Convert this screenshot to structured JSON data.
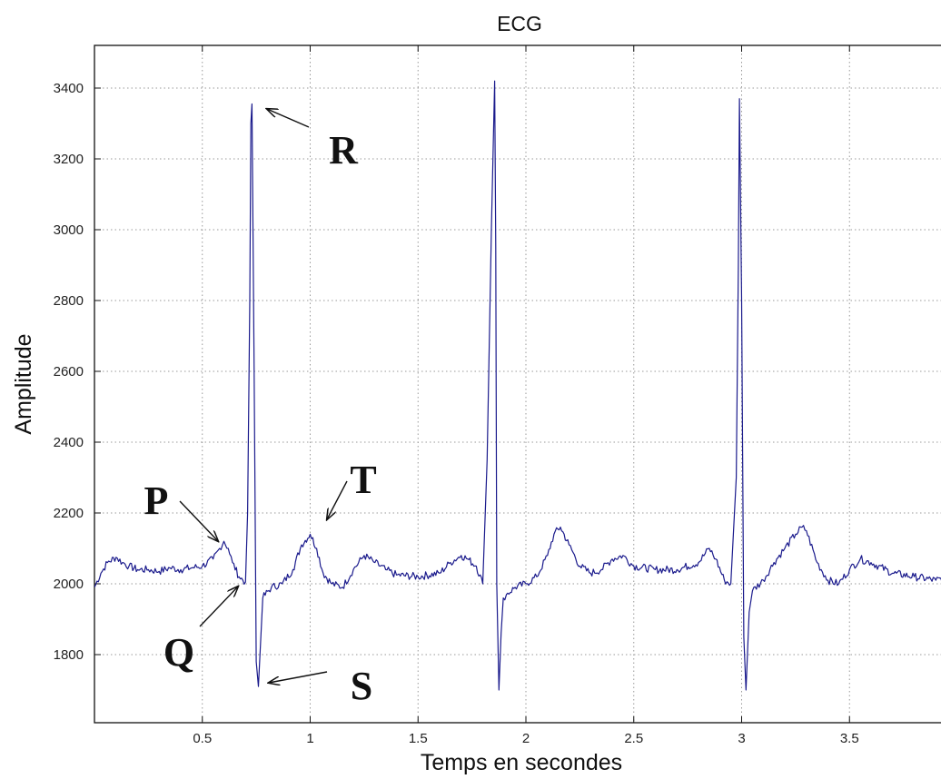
{
  "chart_data": {
    "type": "line",
    "title": "ECG",
    "xlabel": "Temps en secondes",
    "ylabel": "Amplitude",
    "xlim": [
      0,
      3.97
    ],
    "ylim": [
      1625,
      3510
    ],
    "xticks": [
      0.5,
      1,
      1.5,
      2,
      2.5,
      3,
      3.5
    ],
    "xtick_labels": [
      "0.5",
      "1",
      "1.5",
      "2",
      "2.5",
      "3",
      "3.5"
    ],
    "yticks": [
      1800,
      2000,
      2200,
      2400,
      2600,
      2800,
      3000,
      3200,
      3400
    ],
    "ytick_labels": [
      "1800",
      "2000",
      "2200",
      "2400",
      "2600",
      "2800",
      "3000",
      "3200",
      "3400"
    ],
    "grid": true,
    "line_color": "#1a1a8c",
    "series": [
      {
        "x": [
          0.0,
          0.03,
          0.06,
          0.1,
          0.13,
          0.16,
          0.2,
          0.25,
          0.3,
          0.35,
          0.4,
          0.45,
          0.5,
          0.55,
          0.58,
          0.6,
          0.62,
          0.64,
          0.67,
          0.7,
          0.71,
          0.72,
          0.725,
          0.73,
          0.74,
          0.75,
          0.76,
          0.78,
          0.82,
          0.87,
          0.92,
          0.96,
          1.0,
          1.03,
          1.06,
          1.1,
          1.15,
          1.2,
          1.25,
          1.3,
          1.35,
          1.4,
          1.5,
          1.6,
          1.65,
          1.7,
          1.73,
          1.77,
          1.8,
          1.82,
          1.84,
          1.855,
          1.86,
          1.865,
          1.875,
          1.885,
          1.895,
          1.91,
          1.95,
          2.0,
          2.05,
          2.1,
          2.13,
          2.16,
          2.2,
          2.25,
          2.3,
          2.35,
          2.4,
          2.45,
          2.5,
          2.6,
          2.7,
          2.8,
          2.85,
          2.88,
          2.92,
          2.95,
          2.975,
          2.985,
          2.99,
          3.0,
          3.01,
          3.02,
          3.035,
          3.05,
          3.1,
          3.15,
          3.2,
          3.25,
          3.28,
          3.3,
          3.35,
          3.4,
          3.45,
          3.5,
          3.55,
          3.6,
          3.7,
          3.8,
          3.9,
          3.97
        ],
        "y": [
          1990,
          2030,
          2060,
          2075,
          2060,
          2050,
          2040,
          2040,
          2035,
          2045,
          2040,
          2045,
          2050,
          2070,
          2100,
          2120,
          2100,
          2060,
          2020,
          2005,
          2200,
          2800,
          3300,
          3355,
          2600,
          1780,
          1710,
          1960,
          1990,
          2000,
          2040,
          2110,
          2140,
          2100,
          2030,
          2000,
          1990,
          2040,
          2080,
          2060,
          2040,
          2025,
          2020,
          2030,
          2060,
          2080,
          2070,
          2050,
          2000,
          2350,
          3000,
          3420,
          2950,
          2000,
          1700,
          1860,
          1960,
          1970,
          1990,
          2000,
          2020,
          2080,
          2140,
          2160,
          2110,
          2050,
          2030,
          2040,
          2070,
          2080,
          2050,
          2040,
          2040,
          2060,
          2100,
          2070,
          2010,
          2000,
          2300,
          2900,
          3370,
          2800,
          1850,
          1700,
          1920,
          1980,
          2010,
          2060,
          2100,
          2140,
          2160,
          2150,
          2060,
          2010,
          2000,
          2040,
          2070,
          2060,
          2030,
          2020,
          2010,
          2020
        ]
      }
    ],
    "annotations": [
      {
        "label": "P",
        "x": 0.58,
        "y": 2120
      },
      {
        "label": "Q",
        "x": 0.67,
        "y": 2005
      },
      {
        "label": "R",
        "x": 0.78,
        "y": 3355
      },
      {
        "label": "S",
        "x": 0.77,
        "y": 1720
      },
      {
        "label": "T",
        "x": 1.06,
        "y": 2170
      }
    ]
  }
}
